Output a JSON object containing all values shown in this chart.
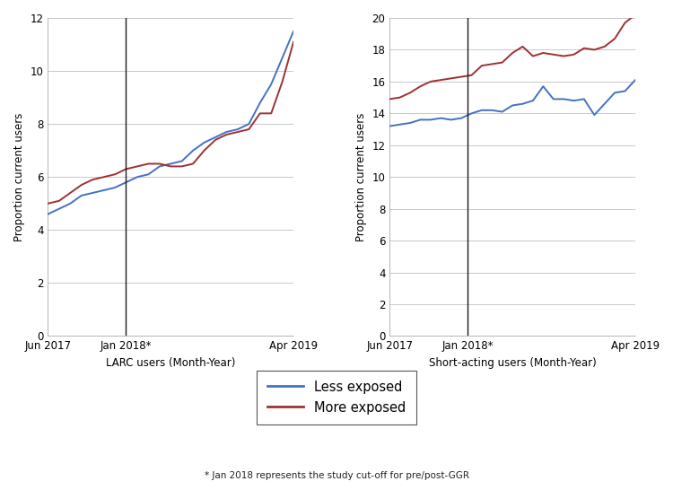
{
  "left_less_exposed": [
    4.6,
    4.8,
    5.0,
    5.3,
    5.4,
    5.5,
    5.6,
    5.8,
    6.0,
    6.1,
    6.4,
    6.5,
    6.6,
    7.0,
    7.3,
    7.5,
    7.7,
    7.8,
    8.0,
    8.8,
    9.5,
    10.5,
    11.5
  ],
  "left_more_exposed": [
    5.0,
    5.1,
    5.4,
    5.7,
    5.9,
    6.0,
    6.1,
    6.3,
    6.4,
    6.5,
    6.5,
    6.4,
    6.4,
    6.5,
    7.0,
    7.4,
    7.6,
    7.7,
    7.8,
    8.4,
    8.4,
    9.6,
    11.1
  ],
  "left_ylabel": "Proportion current users",
  "left_xlabel": "LARC users (Month-Year)",
  "left_ylim": [
    0,
    12
  ],
  "left_yticks": [
    0,
    2,
    4,
    6,
    8,
    10,
    12
  ],
  "right_less_exposed": [
    13.2,
    13.3,
    13.4,
    13.6,
    13.6,
    13.7,
    13.6,
    13.7,
    14.0,
    14.2,
    14.2,
    14.1,
    14.5,
    14.6,
    14.8,
    15.7,
    14.9,
    14.9,
    14.8,
    14.9,
    13.9,
    14.6,
    15.3,
    15.4,
    16.1
  ],
  "right_more_exposed": [
    14.9,
    15.0,
    15.3,
    15.7,
    16.0,
    16.1,
    16.2,
    16.3,
    16.4,
    17.0,
    17.1,
    17.2,
    17.8,
    18.2,
    17.6,
    17.8,
    17.7,
    17.6,
    17.7,
    18.1,
    18.0,
    18.2,
    18.7,
    19.7,
    20.2
  ],
  "right_ylabel": "Proportion current users",
  "right_xlabel": "Short-acting users (Month-Year)",
  "right_ylim": [
    0,
    20
  ],
  "right_yticks": [
    0,
    2,
    4,
    6,
    8,
    10,
    12,
    14,
    16,
    18,
    20
  ],
  "color_less": "#4472c4",
  "color_more": "#9e3132",
  "xtick_labels": [
    "Jun 2017",
    "Jan 2018*",
    "Apr 2019"
  ],
  "vline_color": "#1a1a1a",
  "legend_labels": [
    "Less exposed",
    "More exposed"
  ],
  "footnote": "* Jan 2018 represents the study cut-off for pre/post-GGR",
  "bg_color": "#ffffff",
  "grid_color": "#c8c8c8",
  "figsize": [
    7.5,
    5.46
  ],
  "dpi": 100
}
